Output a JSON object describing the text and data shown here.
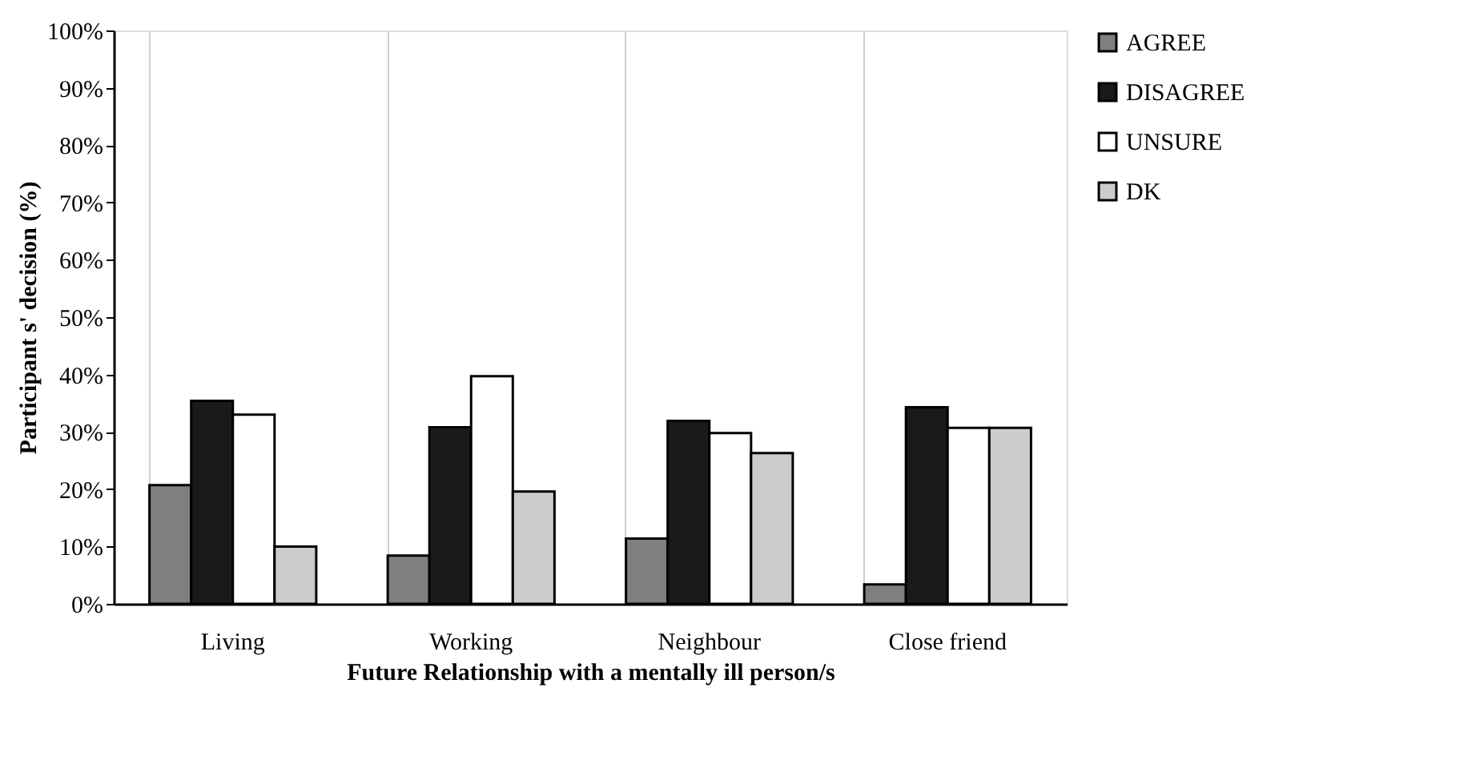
{
  "chart_data": {
    "type": "bar",
    "xlabel": "Future Relationship with a mentally ill person/s",
    "ylabel": "Participant s' decision  (%)",
    "categories": [
      "Living",
      "Working",
      "Neighbour",
      "Close friend"
    ],
    "series": [
      {
        "name": "AGREE",
        "color": "#7f7f7f",
        "values": [
          20.7,
          8.4,
          11.4,
          3.4
        ]
      },
      {
        "name": "DISAGREE",
        "color": "#1a1a1a",
        "values": [
          35.4,
          30.8,
          31.9,
          34.3
        ]
      },
      {
        "name": "UNSURE",
        "color": "#ffffff",
        "values": [
          33.0,
          39.7,
          29.8,
          30.7
        ]
      },
      {
        "name": "DK",
        "color": "#cccccc",
        "values": [
          10.0,
          19.6,
          26.3,
          30.7
        ]
      }
    ],
    "ylim": [
      0,
      100
    ],
    "yticks": [
      {
        "value": 0,
        "label": "0%"
      },
      {
        "value": 10,
        "label": "10%"
      },
      {
        "value": 20,
        "label": "20%"
      },
      {
        "value": 30,
        "label": "30%"
      },
      {
        "value": 40,
        "label": "40%"
      },
      {
        "value": 50,
        "label": "50%"
      },
      {
        "value": 60,
        "label": "60%"
      },
      {
        "value": 70,
        "label": "70%"
      },
      {
        "value": 80,
        "label": "80%"
      },
      {
        "value": 90,
        "label": "90%"
      },
      {
        "value": 100,
        "label": "100%"
      }
    ],
    "grid": "x",
    "legend": "right"
  }
}
